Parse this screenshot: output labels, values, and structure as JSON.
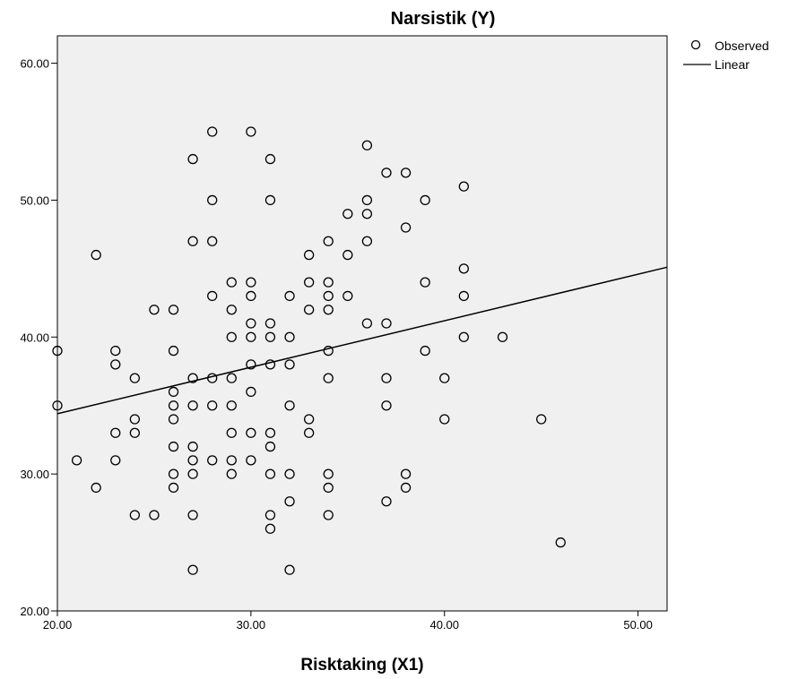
{
  "chart_data": {
    "type": "scatter",
    "title": "Narsistik (Y)",
    "xlabel": "Risktaking (X1)",
    "ylabel": "",
    "xlim": [
      20,
      51.5
    ],
    "ylim": [
      20,
      62
    ],
    "xticks": [
      20,
      30,
      40,
      50
    ],
    "yticks": [
      20,
      30,
      40,
      50,
      60
    ],
    "xtick_labels": [
      "20.00",
      "30.00",
      "40.00",
      "50.00"
    ],
    "ytick_labels": [
      "20.00",
      "30.00",
      "40.00",
      "50.00",
      "60.00"
    ],
    "grid": false,
    "legend_position": "top-right, outside plot",
    "colors": {
      "plot_background": "#f0f0f0",
      "marker": "#000000",
      "line": "#000000"
    },
    "series": [
      {
        "name": "Observed",
        "kind": "points",
        "points": [
          [
            20,
            39
          ],
          [
            20,
            35
          ],
          [
            21,
            31
          ],
          [
            22,
            46
          ],
          [
            22,
            29
          ],
          [
            23,
            39
          ],
          [
            23,
            38
          ],
          [
            23,
            33
          ],
          [
            23,
            31
          ],
          [
            24,
            37
          ],
          [
            24,
            34
          ],
          [
            24,
            33
          ],
          [
            24,
            27
          ],
          [
            25,
            42
          ],
          [
            25,
            27
          ],
          [
            26,
            42
          ],
          [
            26,
            39
          ],
          [
            26,
            36
          ],
          [
            26,
            35
          ],
          [
            26,
            34
          ],
          [
            26,
            32
          ],
          [
            26,
            30
          ],
          [
            26,
            29
          ],
          [
            27,
            53
          ],
          [
            27,
            47
          ],
          [
            27,
            37
          ],
          [
            27,
            35
          ],
          [
            27,
            32
          ],
          [
            27,
            31
          ],
          [
            27,
            30
          ],
          [
            27,
            27
          ],
          [
            27,
            23
          ],
          [
            28,
            55
          ],
          [
            28,
            50
          ],
          [
            28,
            47
          ],
          [
            28,
            43
          ],
          [
            28,
            37
          ],
          [
            28,
            35
          ],
          [
            28,
            31
          ],
          [
            29,
            44
          ],
          [
            29,
            42
          ],
          [
            29,
            40
          ],
          [
            29,
            37
          ],
          [
            29,
            35
          ],
          [
            29,
            33
          ],
          [
            29,
            31
          ],
          [
            29,
            30
          ],
          [
            30,
            55
          ],
          [
            30,
            44
          ],
          [
            30,
            43
          ],
          [
            30,
            41
          ],
          [
            30,
            40
          ],
          [
            30,
            38
          ],
          [
            30,
            36
          ],
          [
            30,
            33
          ],
          [
            30,
            31
          ],
          [
            31,
            53
          ],
          [
            31,
            50
          ],
          [
            31,
            41
          ],
          [
            31,
            40
          ],
          [
            31,
            38
          ],
          [
            31,
            33
          ],
          [
            31,
            32
          ],
          [
            31,
            30
          ],
          [
            31,
            27
          ],
          [
            31,
            26
          ],
          [
            32,
            43
          ],
          [
            32,
            40
          ],
          [
            32,
            38
          ],
          [
            32,
            35
          ],
          [
            32,
            30
          ],
          [
            32,
            28
          ],
          [
            32,
            23
          ],
          [
            33,
            46
          ],
          [
            33,
            44
          ],
          [
            33,
            42
          ],
          [
            33,
            34
          ],
          [
            33,
            33
          ],
          [
            34,
            47
          ],
          [
            34,
            44
          ],
          [
            34,
            43
          ],
          [
            34,
            42
          ],
          [
            34,
            39
          ],
          [
            34,
            37
          ],
          [
            34,
            30
          ],
          [
            34,
            29
          ],
          [
            34,
            27
          ],
          [
            35,
            49
          ],
          [
            35,
            46
          ],
          [
            35,
            43
          ],
          [
            36,
            54
          ],
          [
            36,
            50
          ],
          [
            36,
            49
          ],
          [
            36,
            47
          ],
          [
            36,
            41
          ],
          [
            37,
            52
          ],
          [
            37,
            41
          ],
          [
            37,
            37
          ],
          [
            37,
            35
          ],
          [
            37,
            28
          ],
          [
            38,
            52
          ],
          [
            38,
            48
          ],
          [
            38,
            30
          ],
          [
            38,
            29
          ],
          [
            39,
            50
          ],
          [
            39,
            44
          ],
          [
            39,
            39
          ],
          [
            40,
            37
          ],
          [
            40,
            34
          ],
          [
            41,
            51
          ],
          [
            41,
            45
          ],
          [
            41,
            43
          ],
          [
            41,
            40
          ],
          [
            43,
            40
          ],
          [
            45,
            34
          ],
          [
            46,
            25
          ]
        ]
      },
      {
        "name": "Linear",
        "kind": "line",
        "points": [
          [
            20,
            34.4
          ],
          [
            51.5,
            45.1
          ]
        ]
      }
    ]
  }
}
